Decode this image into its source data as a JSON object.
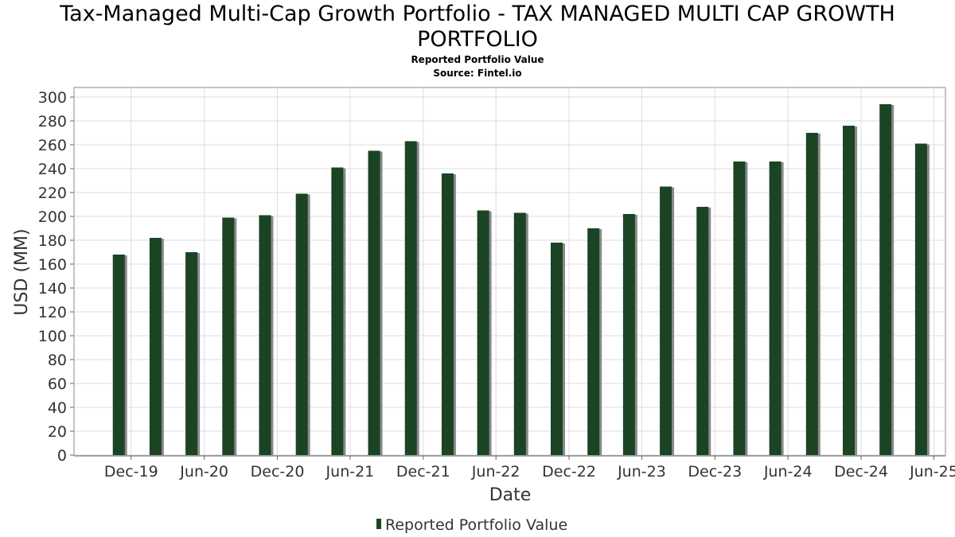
{
  "header": {
    "title_line1": "Tax-Managed Multi-Cap Growth Portfolio - TAX MANAGED MULTI CAP GROWTH",
    "title_line2": "PORTFOLIO",
    "subtitle": "Reported Portfolio Value",
    "source": "Source: Fintel.io"
  },
  "chart_data": {
    "type": "bar",
    "title": "Tax-Managed Multi-Cap Growth Portfolio - TAX MANAGED MULTI CAP GROWTH PORTFOLIO",
    "subtitle": "Reported Portfolio Value",
    "xlabel": "Date",
    "ylabel": "USD (MM)",
    "ylim": [
      0,
      306
    ],
    "yticks": [
      0,
      20,
      40,
      60,
      80,
      100,
      120,
      140,
      160,
      180,
      200,
      220,
      240,
      260,
      280,
      300
    ],
    "x_range": [
      "2019-07-11",
      "2025-06-30"
    ],
    "xticks": [
      {
        "label": "Dec-19",
        "date": "2019-12-01"
      },
      {
        "label": "Jun-20",
        "date": "2020-06-01"
      },
      {
        "label": "Dec-20",
        "date": "2020-12-01"
      },
      {
        "label": "Jun-21",
        "date": "2021-06-01"
      },
      {
        "label": "Dec-21",
        "date": "2021-12-01"
      },
      {
        "label": "Jun-22",
        "date": "2022-06-01"
      },
      {
        "label": "Dec-22",
        "date": "2022-12-01"
      },
      {
        "label": "Jun-23",
        "date": "2023-06-01"
      },
      {
        "label": "Dec-23",
        "date": "2023-12-01"
      },
      {
        "label": "Jun-24",
        "date": "2024-06-01"
      },
      {
        "label": "Dec-24",
        "date": "2024-12-01"
      },
      {
        "label": "Jun-25",
        "date": "2025-06-01"
      }
    ],
    "grid": true,
    "legend_position": "bottom",
    "series": [
      {
        "name": "Reported Portfolio Value",
        "color": "#1a4423",
        "x": [
          "2019-10-31",
          "2020-01-31",
          "2020-04-30",
          "2020-07-31",
          "2020-10-31",
          "2021-01-31",
          "2021-04-30",
          "2021-07-31",
          "2021-10-31",
          "2022-01-31",
          "2022-04-30",
          "2022-07-31",
          "2022-10-31",
          "2023-01-31",
          "2023-04-30",
          "2023-07-31",
          "2023-10-31",
          "2024-01-31",
          "2024-04-30",
          "2024-07-31",
          "2024-10-31",
          "2025-01-31",
          "2025-04-30"
        ],
        "values": [
          168,
          182,
          170,
          199,
          201,
          219,
          241,
          255,
          263,
          236,
          205,
          203,
          178,
          190,
          202,
          225,
          208,
          246,
          246,
          270,
          276,
          294,
          261
        ]
      }
    ]
  },
  "legend": {
    "label": "Reported Portfolio Value"
  }
}
